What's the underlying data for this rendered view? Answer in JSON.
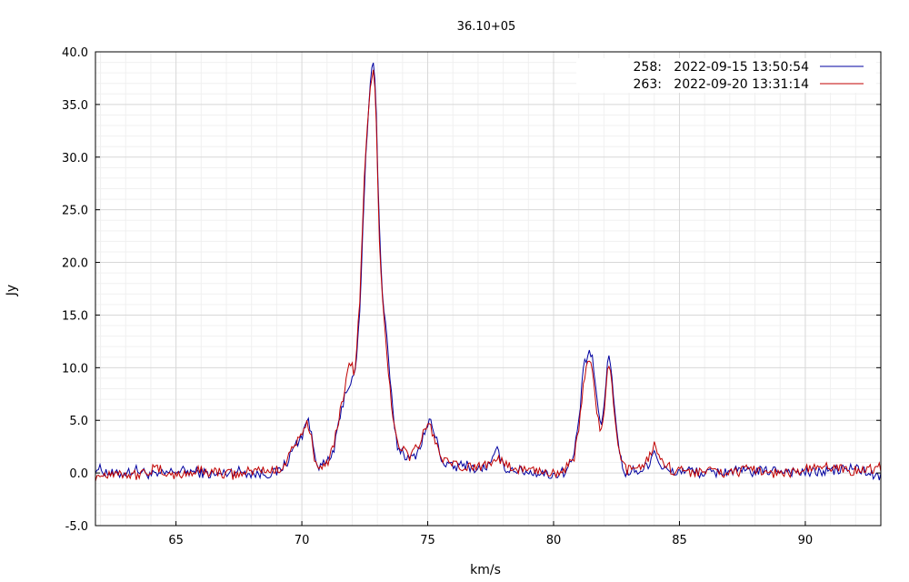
{
  "chart_data": {
    "type": "line",
    "title": "36.10+05",
    "xlabel": "km/s",
    "ylabel": "Jy",
    "xlim": [
      61.8,
      93.0
    ],
    "ylim": [
      -5.0,
      40.0
    ],
    "xticks": [
      65,
      70,
      75,
      80,
      85,
      90
    ],
    "xtick_labels": [
      "65",
      "70",
      "75",
      "80",
      "85",
      "90"
    ],
    "yticks": [
      -5,
      0,
      5,
      10,
      15,
      20,
      25,
      30,
      35,
      40
    ],
    "ytick_labels": [
      "-5.0",
      "0.0",
      "5.0",
      "10.0",
      "15.0",
      "20.0",
      "25.0",
      "30.0",
      "35.0",
      "40.0"
    ],
    "grid": true,
    "legend_position": "top-right",
    "series": [
      {
        "name": "258:   2022-09-15 13:50:54",
        "color": "#0000a0",
        "x": [
          61.8,
          62.6,
          63.4,
          64.2,
          65.0,
          65.8,
          66.6,
          67.4,
          68.2,
          69.0,
          69.4,
          69.7,
          70.0,
          70.2,
          70.35,
          70.5,
          70.7,
          70.9,
          71.1,
          71.3,
          71.5,
          71.7,
          71.9,
          72.1,
          72.3,
          72.5,
          72.7,
          72.85,
          72.95,
          73.05,
          73.2,
          73.4,
          73.6,
          73.8,
          74.0,
          74.3,
          74.6,
          74.9,
          75.1,
          75.3,
          75.6,
          76.0,
          76.5,
          77.0,
          77.5,
          77.8,
          78.0,
          78.5,
          79.0,
          79.5,
          80.0,
          80.5,
          80.8,
          81.0,
          81.2,
          81.4,
          81.55,
          81.7,
          81.9,
          82.0,
          82.15,
          82.3,
          82.5,
          82.7,
          82.9,
          83.2,
          83.5,
          83.8,
          84.0,
          84.3,
          84.7,
          85.3,
          86.0,
          87.0,
          88.0,
          89.0,
          90.0,
          91.0,
          92.0,
          93.0
        ],
        "y": [
          0.5,
          -0.2,
          0.3,
          -0.3,
          0.2,
          0.1,
          -0.2,
          0.2,
          -0.1,
          0.0,
          1.0,
          2.5,
          3.5,
          5.2,
          4.0,
          2.0,
          0.5,
          0.8,
          1.2,
          2.5,
          5.0,
          7.5,
          8.5,
          9.0,
          15.0,
          28.0,
          37.0,
          39.5,
          35.0,
          25.0,
          17.0,
          12.0,
          6.0,
          2.5,
          2.0,
          1.2,
          2.0,
          4.0,
          5.0,
          3.5,
          1.0,
          0.5,
          0.8,
          0.3,
          0.8,
          2.3,
          0.5,
          0.3,
          0.1,
          0.0,
          -0.2,
          0.2,
          1.5,
          5.0,
          10.0,
          11.5,
          11.0,
          7.0,
          4.5,
          6.0,
          11.0,
          10.0,
          4.0,
          1.0,
          -0.2,
          0.3,
          0.2,
          1.0,
          2.2,
          0.5,
          0.0,
          0.3,
          -0.1,
          0.2,
          0.1,
          0.3,
          0.0,
          0.2,
          0.5,
          -0.5
        ]
      },
      {
        "name": "263:   2022-09-20 13:31:14",
        "color": "#c00000",
        "x": [
          61.8,
          62.6,
          63.4,
          64.2,
          65.0,
          65.8,
          66.6,
          67.4,
          68.2,
          69.0,
          69.4,
          69.7,
          70.0,
          70.2,
          70.35,
          70.5,
          70.7,
          70.9,
          71.1,
          71.3,
          71.5,
          71.7,
          71.9,
          72.1,
          72.3,
          72.5,
          72.7,
          72.85,
          72.95,
          73.05,
          73.2,
          73.4,
          73.6,
          73.8,
          74.0,
          74.3,
          74.6,
          74.9,
          75.1,
          75.3,
          75.6,
          76.0,
          76.5,
          77.0,
          77.5,
          77.8,
          78.0,
          78.5,
          79.0,
          79.5,
          80.0,
          80.5,
          80.8,
          81.0,
          81.2,
          81.4,
          81.55,
          81.7,
          81.9,
          82.0,
          82.15,
          82.3,
          82.5,
          82.7,
          82.9,
          83.2,
          83.5,
          83.8,
          84.0,
          84.3,
          84.7,
          85.3,
          86.0,
          87.0,
          88.0,
          89.0,
          90.0,
          91.0,
          92.0,
          93.0
        ],
        "y": [
          -0.3,
          0.1,
          -0.2,
          0.4,
          -0.3,
          0.2,
          0.1,
          -0.2,
          0.3,
          0.2,
          1.2,
          2.8,
          3.3,
          4.8,
          3.6,
          1.6,
          0.8,
          0.6,
          1.5,
          3.0,
          5.5,
          8.0,
          10.8,
          9.5,
          16.0,
          29.0,
          36.0,
          38.5,
          34.0,
          24.0,
          16.5,
          11.0,
          5.5,
          3.0,
          2.2,
          1.6,
          2.5,
          4.2,
          4.5,
          3.0,
          1.2,
          0.7,
          0.5,
          0.6,
          1.0,
          1.8,
          0.7,
          0.4,
          0.3,
          0.2,
          0.0,
          0.5,
          1.2,
          4.0,
          9.0,
          10.5,
          9.8,
          6.0,
          3.8,
          5.5,
          10.0,
          9.0,
          3.5,
          0.8,
          0.2,
          0.5,
          0.8,
          1.5,
          2.8,
          1.2,
          0.3,
          0.1,
          0.2,
          0.0,
          0.4,
          -0.1,
          0.3,
          0.6,
          0.2,
          0.5
        ]
      }
    ]
  }
}
